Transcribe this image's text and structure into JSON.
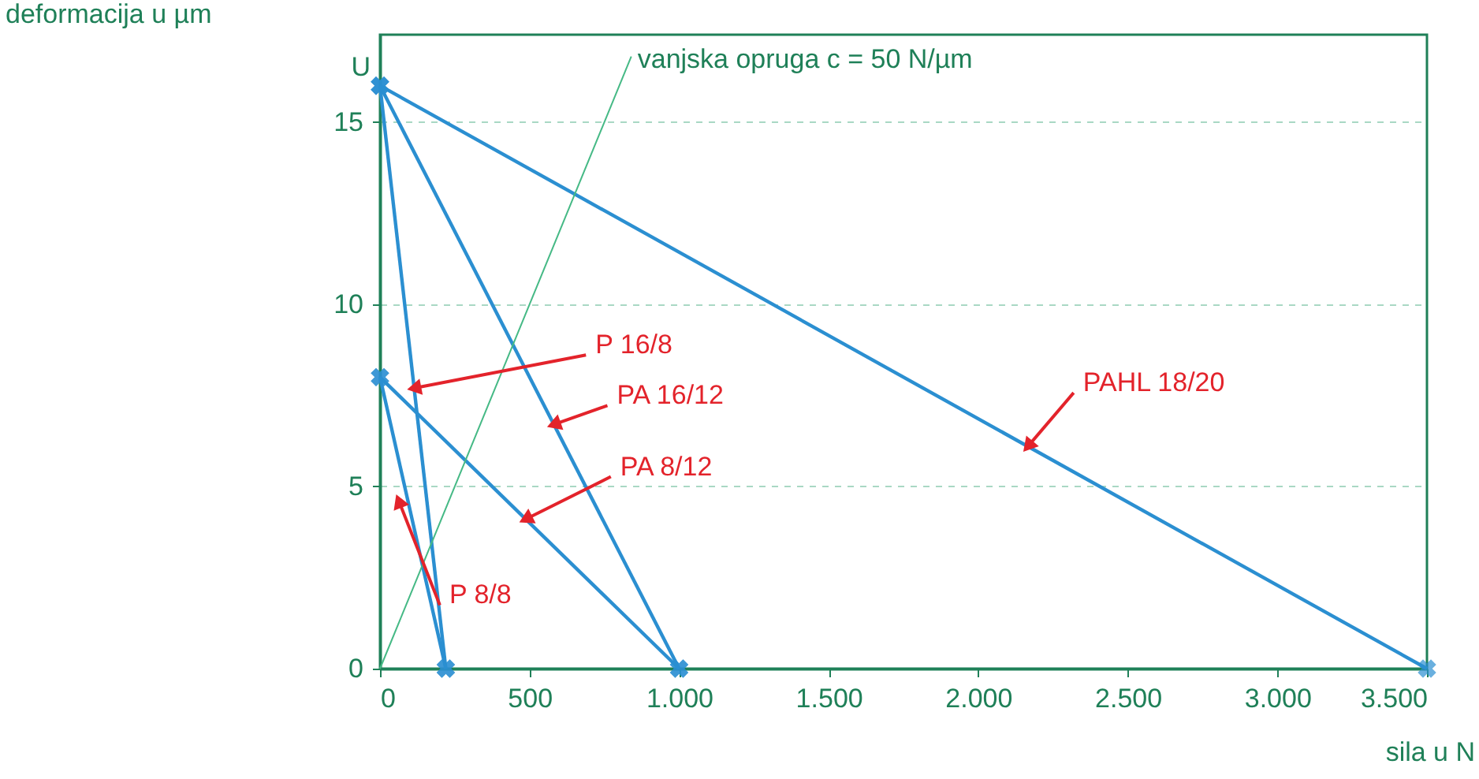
{
  "chart_data": {
    "type": "line",
    "xlabel": "sila u N",
    "ylabel": "deformacija u µm",
    "xlim": [
      0,
      3500
    ],
    "ylim": [
      0,
      17.4
    ],
    "xticks": [
      0,
      500,
      {
        "value": 1000,
        "label": "1.000"
      },
      {
        "value": 1500,
        "label": "1.500"
      },
      {
        "value": 2000,
        "label": "2.000"
      },
      {
        "value": 2500,
        "label": "2.500"
      },
      {
        "value": 3000,
        "label": "3.000"
      },
      {
        "value": 3500,
        "label": "3.500"
      }
    ],
    "yticks": [
      0,
      5,
      10,
      15
    ],
    "grid": "y",
    "legend": false,
    "marker": "cross",
    "line_style": "solid",
    "series": [
      {
        "x": [
          0,
          3500
        ],
        "values": [
          16,
          0
        ],
        "color": "#2b8fd1"
      },
      {
        "x": [
          0,
          1000
        ],
        "values": [
          16,
          0
        ],
        "color": "#2b8fd1"
      },
      {
        "x": [
          0,
          220
        ],
        "values": [
          16,
          0
        ],
        "color": "#2b8fd1"
      },
      {
        "x": [
          0,
          1000
        ],
        "values": [
          8,
          0
        ],
        "color": "#2b8fd1"
      },
      {
        "x": [
          0,
          220
        ],
        "values": [
          8,
          0
        ],
        "color": "#2b8fd1"
      },
      {
        "name": "vanjska opruga c = 50 N/µm",
        "x": [
          0,
          840
        ],
        "values": [
          0,
          16.8
        ],
        "color": "#45b985",
        "marker": "none"
      }
    ],
    "annotations": [
      "U",
      {
        "text": "P 16/8",
        "x": 114,
        "y": 7.7
      },
      {
        "text": "PA 16/12",
        "x": 581,
        "y": 6.7
      },
      {
        "text": "PA 8/12",
        "x": 487,
        "y": 4.1
      },
      {
        "text": "PAHL 18/20",
        "x": 2166,
        "y": 6.1
      },
      {
        "text": "P 8/8",
        "x": 63,
        "y": 4.6
      }
    ]
  }
}
